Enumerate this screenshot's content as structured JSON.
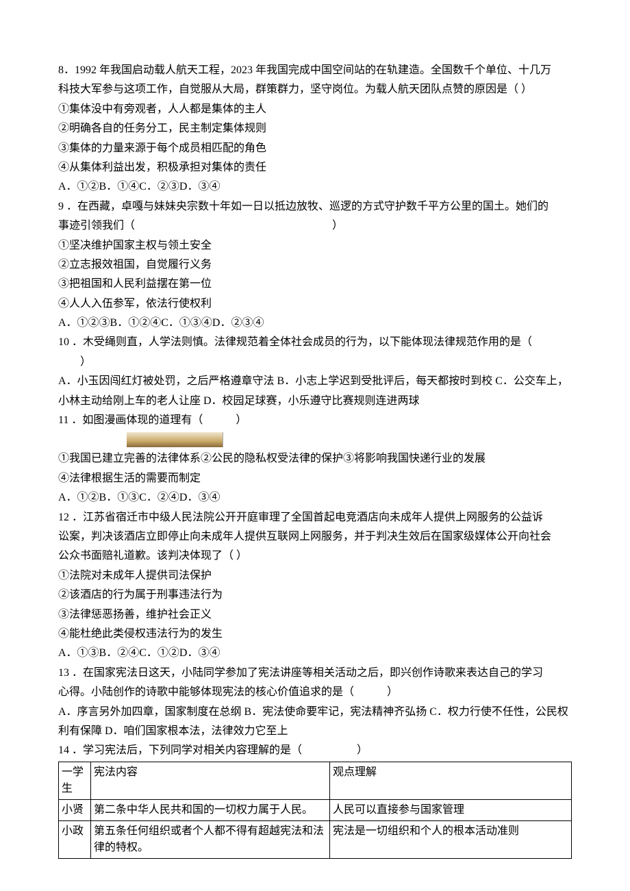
{
  "q8": {
    "stem_l1": "8．1992 年我国启动载人航天工程，2023 年我国完成中国空间站的在轨建造。全国数千个单位、十几万",
    "stem_l2": "科技大军参与这项工作，自觉服从大局，群策群力，坚守岗位。为载人航天团队点赞的原因是（ ）",
    "opt1": "①集体没中有旁观者，人人都是集体的主人",
    "opt2": "②明确各自的任务分工，民主制定集体规则",
    "opt3": "③集体的力量来源于每个成员相匹配的角色",
    "opt4": "④从集体利益出发，积极承担对集体的责任",
    "choices": "A．①②B．①④C．②③D．③④"
  },
  "q9": {
    "stem_l1": "9 ．在西藏，卓嘎与妹妹央宗数十年如一日以抵边放牧、巡逻的方式守护数千平方公里的国土。她们的",
    "stem_l2": "事迹引领我们（　　　　　　　　　　　　　　　　　　）",
    "opt1": "①坚决维护国家主权与领土安全",
    "opt2": "②立志报效祖国，自觉履行义务",
    "opt3": "③把祖国和人民利益摆在第一位",
    "opt4": "④人人入伍参军，依法行使权利",
    "choices": "A．①②③B．①②④C．①③④D．②③④"
  },
  "q10": {
    "stem_l1": "10 ．木受绳则直，人学法则慎。法律规范着全体社会成员的行为，以下能体现法律规范作用的是（",
    "stem_l2": "　　）",
    "choices_l1": "A．小玉因闯红灯被处罚，之后严格遵章守法 B．小志上学迟到受批评后，每天都按时到校 C．公交车上，",
    "choices_l2": "小林主动给刚上车的老人让座 D．校园足球赛，小乐遵守比赛规则连进两球"
  },
  "q11": {
    "stem": "11 ．如图漫画体现的道理有（　　　）",
    "opt_l1": "①我国已建立完善的法律体系②公民的隐私权受法律的保护③将影响我国快递行业的发展",
    "opt_l2": "④法律根据生活的需要而制定",
    "choices": "A．①②B．①③C．②④D．③④"
  },
  "q12": {
    "stem_l1": "12 ．江苏省宿迁市中级人民法院公开开庭审理了全国首起电竞酒店向未成年人提供上网服务的公益诉",
    "stem_l2": "讼案，判决该酒店立即停止向未成年人提供互联网上网服务，并于判决生效后在国家级媒体公开向社会",
    "stem_l3": "公众书面赔礼道歉。该判决体现了（ ）",
    "opt1": "①法院对未成年人提供司法保护",
    "opt2": "②该酒店的行为属于刑事违法行为",
    "opt3": "③法律惩恶扬善，维护社会正义",
    "opt4": "④能杜绝此类侵权违法行为的发生",
    "choices": "A．①③B．②④C．①②D．③④"
  },
  "q13": {
    "stem_l1": "13 ．在国家宪法日这天，小陆同学参加了宪法讲座等相关活动之后，即兴创作诗歌来表达自己的学习",
    "stem_l2": "心得。小陆创作的诗歌中能够体现宪法的核心价值追求的是（　　　）",
    "choices_l1": "A．序言另外加四章，国家制度在总纲 B．宪法使命要牢记，宪法精神齐弘扬 C．权力行使不任性，公民权",
    "choices_l2": "利有保障 D．咱们国家根本法，法律效力它至上"
  },
  "q14": {
    "stem": "14 ．学习宪法后，下列同学对相关内容理解的是（　　　　　）",
    "table": {
      "header": {
        "c1": "一学生",
        "c2": "宪法内容",
        "c3": "观点理解"
      },
      "rows": [
        {
          "c1": "小贤",
          "c2": "第二条中华人民共和国的一切权力属于人民。",
          "c3": "人民可以直接参与国家管理"
        },
        {
          "c1": "小政",
          "c2": "第五条任何组织或者个人都不得有超越宪法和法律的特权。",
          "c3": "宪法是一切组织和个人的根本活动准则"
        }
      ]
    }
  }
}
